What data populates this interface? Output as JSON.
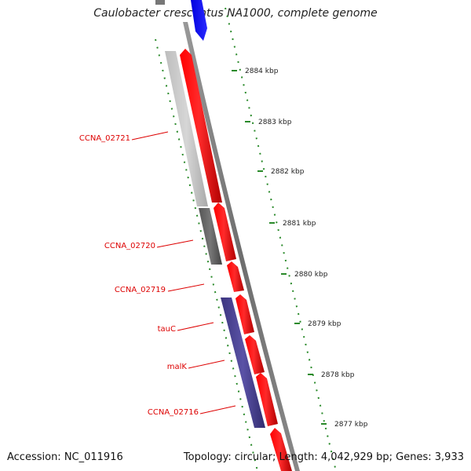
{
  "title": "Caulobacter crescentus NA1000, complete genome",
  "accession_text": "Accession: NC_011916",
  "summary_text": "Topology: circular; Length: 4,042,929 bp; Genes: 3,933",
  "scale": {
    "ticks": [
      {
        "label": "2884 kbp"
      },
      {
        "label": "2883 kbp"
      },
      {
        "label": "2882 kbp"
      },
      {
        "label": "2881 kbp"
      },
      {
        "label": "2880 kbp"
      },
      {
        "label": "2879 kbp"
      },
      {
        "label": "2878 kbp"
      },
      {
        "label": "2877 kbp"
      }
    ]
  },
  "genes": [
    {
      "name": "CCNA_02721"
    },
    {
      "name": "CCNA_02720"
    },
    {
      "name": "CCNA_02719"
    },
    {
      "name": "tauC"
    },
    {
      "name": "malK"
    },
    {
      "name": "CCNA_02716"
    }
  ],
  "colors": {
    "forward_cds": "#ff0000",
    "reverse_cds_light": "#c8c8c8",
    "reverse_cds_dark": "#606060",
    "reverse_cds_blue": "#4a4294",
    "top_feature": "#0000ee",
    "backbone": "#808080",
    "tick": "#2a8a2a",
    "label_red": "#dd0000"
  }
}
